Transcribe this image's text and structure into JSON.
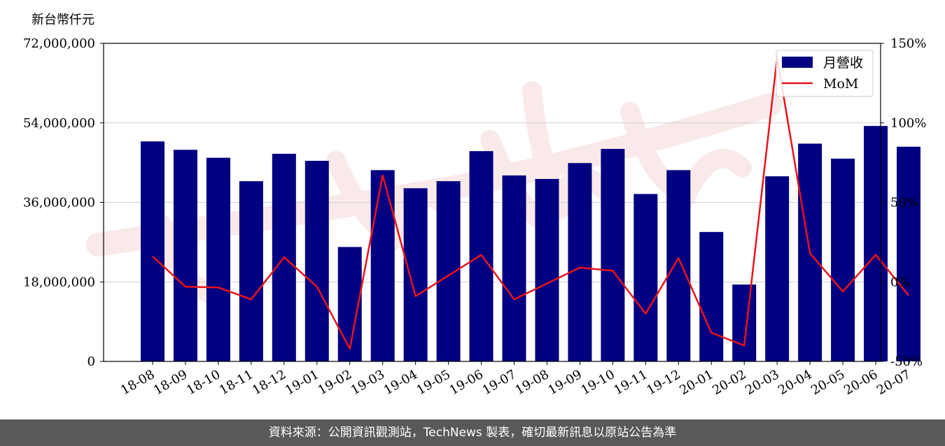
{
  "chart_data": {
    "type": "bar",
    "left_axis_unit": "新台幣仟元",
    "categories": [
      "18-08",
      "18-09",
      "18-10",
      "18-11",
      "18-12",
      "19-01",
      "19-02",
      "19-03",
      "19-04",
      "19-05",
      "19-06",
      "19-07",
      "19-08",
      "19-09",
      "19-10",
      "19-11",
      "19-12",
      "20-01",
      "20-02",
      "20-03",
      "20-04",
      "20-05",
      "20-06",
      "20-07"
    ],
    "series": [
      {
        "name": "月營收",
        "type": "bar",
        "axis": "left",
        "color": "#000080",
        "values": [
          49800000,
          47900000,
          46100000,
          40800000,
          47000000,
          45400000,
          25900000,
          43300000,
          39200000,
          40800000,
          47600000,
          42100000,
          41300000,
          44900000,
          48100000,
          37900000,
          43300000,
          29300000,
          17400000,
          41900000,
          49300000,
          45900000,
          53300000,
          48600000
        ]
      },
      {
        "name": "MoM",
        "type": "line",
        "axis": "right",
        "color": "#e8141a",
        "values": [
          16,
          -3,
          -3.5,
          -11,
          15.5,
          -3,
          -42,
          67,
          -9,
          4,
          17,
          -11,
          -1,
          9,
          7,
          -20,
          15,
          -32,
          -40,
          141,
          18,
          -6,
          17,
          -8.5
        ]
      }
    ],
    "left_axis": {
      "min": 0,
      "max": 72000000,
      "ticks": [
        0,
        18000000,
        36000000,
        54000000,
        72000000
      ],
      "tick_labels": [
        "0",
        "18,000,000",
        "36,000,000",
        "54,000,000",
        "72,000,000"
      ]
    },
    "right_axis": {
      "min": -50,
      "max": 150,
      "ticks": [
        -50,
        0,
        50,
        100,
        150
      ],
      "tick_labels": [
        "-50%",
        "0%",
        "50%",
        "100%",
        "150%"
      ]
    },
    "grid": true,
    "legend_position": "top-right"
  },
  "footer": {
    "text": "資料來源：公開資訊觀測站，TechNews 製表，確切最新訊息以原站公告為準"
  },
  "colors": {
    "bar": "#000080",
    "line": "#e8141a",
    "footer_bg": "#595959",
    "watermark": "#f5d4d4"
  }
}
